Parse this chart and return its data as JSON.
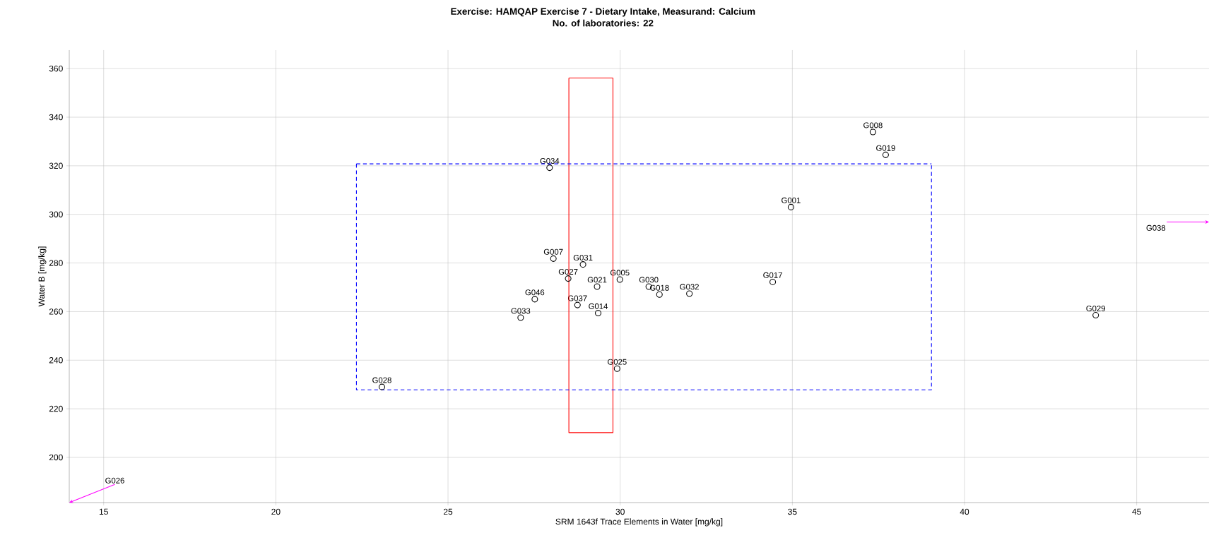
{
  "chart_data": {
    "type": "scatter",
    "title": "Exercise: HAMQAP Exercise 7 - Dietary Intake, Measurand: Calcium",
    "subtitle": "No. of laboratories: 22",
    "xlabel": "SRM 1643f Trace Elements in Water [mg/kg]",
    "ylabel": "Water B [mg/kg]",
    "xlim": [
      14.0,
      47.1
    ],
    "ylim": [
      181.4,
      367.6
    ],
    "xticks": [
      15,
      20,
      25,
      30,
      35,
      40,
      45
    ],
    "yticks": [
      200,
      220,
      240,
      260,
      280,
      300,
      320,
      340,
      360
    ],
    "grid": true,
    "marker": "circle",
    "series": [
      {
        "color": "#000000",
        "x": [
          27.95,
          28.06,
          28.92,
          28.49,
          29.33,
          29.99,
          30.83,
          31.14,
          32.01,
          34.43,
          34.96,
          37.34,
          37.71,
          27.52,
          27.11,
          28.76,
          29.36,
          29.91,
          23.08,
          43.81
        ],
        "values": [
          319.2,
          281.8,
          279.4,
          273.6,
          270.3,
          273.2,
          270.3,
          267.0,
          267.4,
          272.2,
          303.0,
          333.9,
          324.5,
          265.1,
          257.5,
          262.7,
          259.4,
          236.5,
          229.0,
          258.5
        ],
        "value_labels": [
          "G034",
          "G007",
          "G031",
          "G027",
          "G021",
          "G005",
          "G030",
          "G018",
          "G032",
          "G017",
          "G001",
          "G008",
          "G019",
          "G046",
          "G033",
          "G037",
          "G014",
          "G025",
          "G028",
          "G029"
        ]
      },
      {
        "type": "line",
        "color": "#ff0000",
        "line_style": "solid",
        "marker": "none",
        "x": [
          28.51,
          28.51,
          29.79,
          29.79
        ],
        "values": [
          356.1,
          210.2,
          210.2,
          356.1
        ]
      },
      {
        "type": "line",
        "color": "#ff0000",
        "line_style": "solid",
        "marker": "none",
        "x": [
          28.51,
          29.79
        ],
        "values": [
          356.1,
          356.1
        ]
      },
      {
        "type": "line",
        "color": "#0000ff",
        "line_style": "dashed",
        "marker": "none",
        "x": [
          22.34,
          22.34,
          39.04,
          39.04
        ],
        "values": [
          320.8,
          227.8,
          227.8,
          320.8
        ]
      },
      {
        "type": "line",
        "color": "#0000ff",
        "line_style": "dashed",
        "marker": "none",
        "x": [
          22.34,
          39.04
        ],
        "values": [
          320.8,
          320.8
        ]
      }
    ],
    "annotations": [
      "G026",
      "G038"
    ]
  }
}
